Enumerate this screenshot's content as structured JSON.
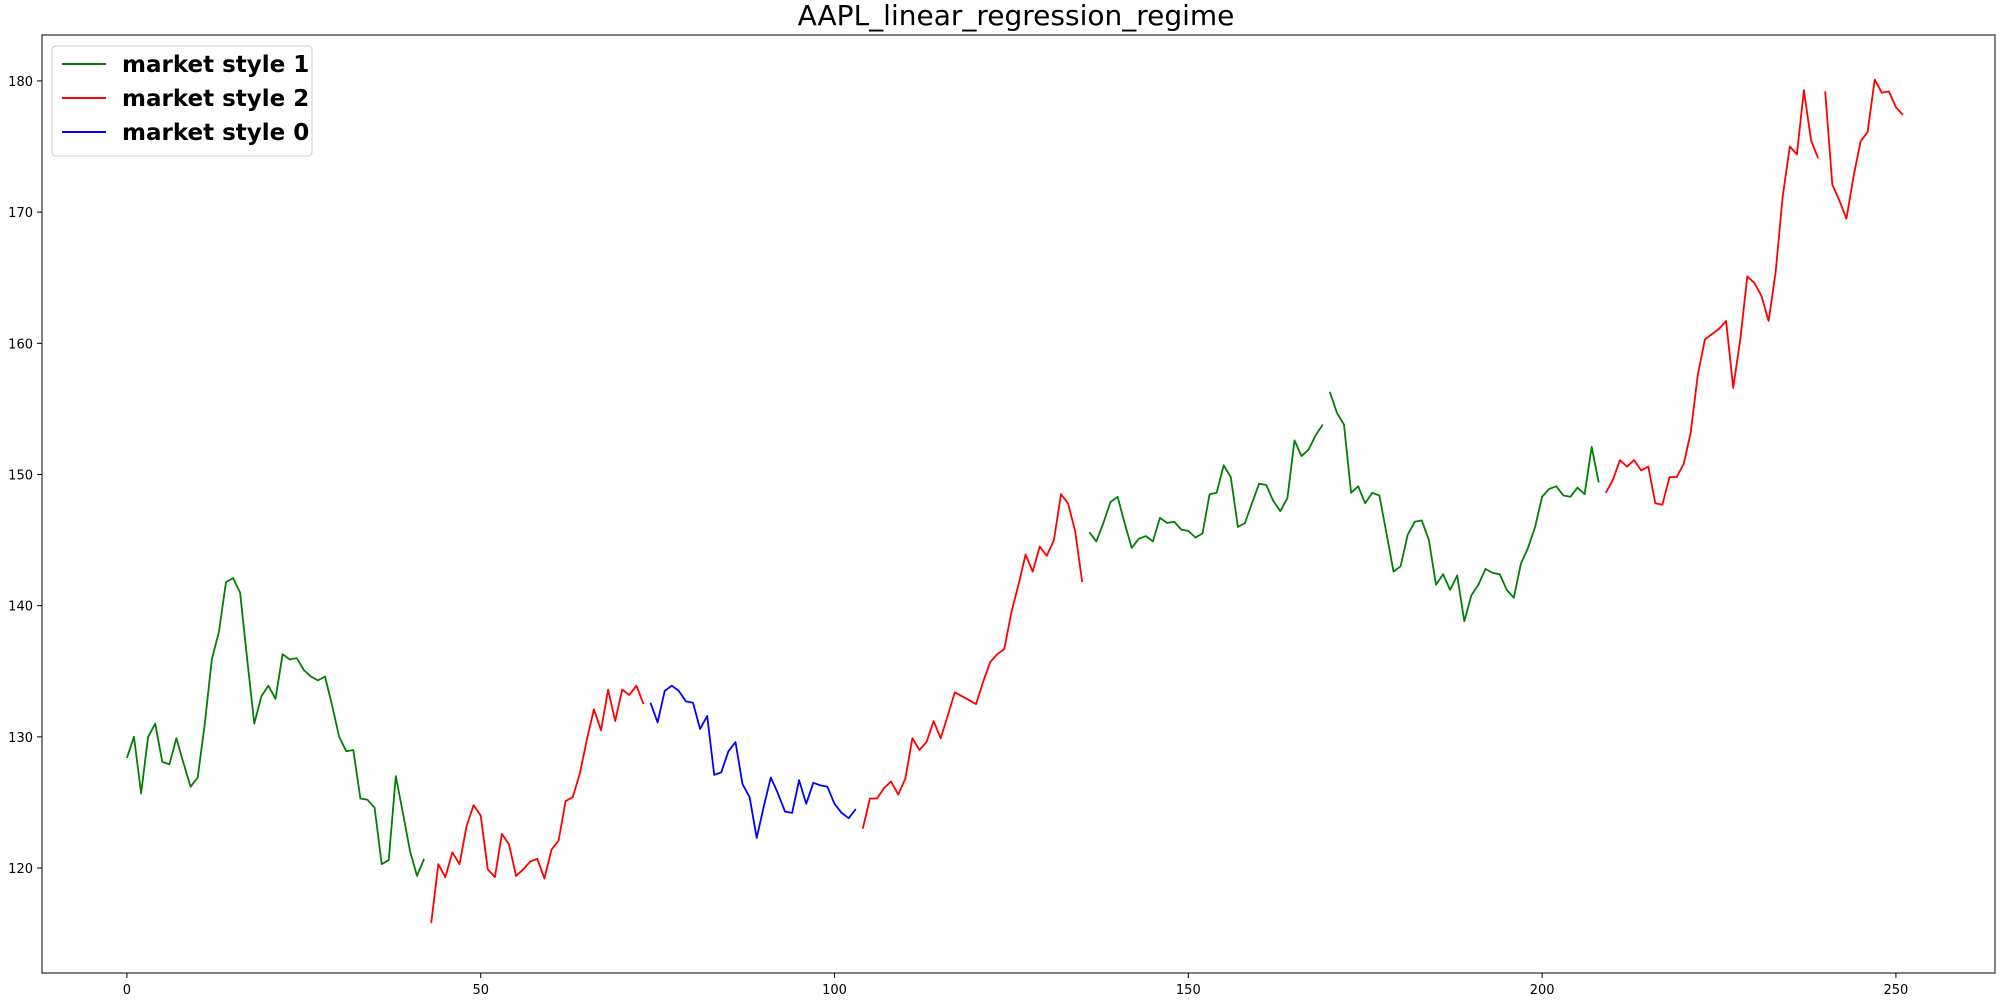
{
  "chart_data": {
    "type": "line",
    "title": "AAPL_linear_regression_regime",
    "xlabel": "",
    "ylabel": "",
    "xlim": [
      -12,
      264
    ],
    "ylim": [
      112,
      183.5
    ],
    "xticks": [
      0,
      50,
      100,
      150,
      200,
      250
    ],
    "yticks": [
      120,
      130,
      140,
      150,
      160,
      170,
      180
    ],
    "grid": false,
    "legend_position": "upper-left",
    "legend": [
      {
        "label": "market style 1",
        "color": "#008000"
      },
      {
        "label": "market style 2",
        "color": "#ff0000"
      },
      {
        "label": "market style 0",
        "color": "#0000ff"
      }
    ],
    "segments": [
      {
        "style": "market style 1",
        "color": "#008000",
        "x_start": 0,
        "values": [
          128.4,
          130.0,
          125.7,
          130.0,
          131.0,
          128.1,
          127.9,
          129.9,
          128.0,
          126.2,
          126.9,
          131.0,
          135.9,
          138.0,
          141.8,
          142.1,
          141.0,
          135.9,
          131.0,
          133.1,
          133.9,
          132.9,
          136.3,
          135.9,
          136.0,
          135.1,
          134.6,
          134.3,
          134.6,
          132.4,
          130.0,
          128.9,
          129.0,
          125.3,
          125.2,
          124.6,
          120.3,
          120.6,
          127.0,
          124.2,
          121.3,
          119.4,
          120.7
        ]
      },
      {
        "style": "market style 2",
        "color": "#ff0000",
        "x_start": 43,
        "values": [
          115.8,
          120.3,
          119.3,
          121.2,
          120.3,
          123.2,
          124.8,
          124.0,
          119.9,
          119.3,
          122.6,
          121.8,
          119.4,
          119.9,
          120.5,
          120.7,
          119.2,
          121.4,
          122.1,
          125.1,
          125.4,
          127.2,
          129.8,
          132.1,
          130.5,
          133.6,
          131.2,
          133.6,
          133.2,
          133.9,
          132.5
        ]
      },
      {
        "style": "market style 0",
        "color": "#0000ff",
        "x_start": 74,
        "values": [
          132.6,
          131.1,
          133.5,
          133.9,
          133.5,
          132.7,
          132.6,
          130.6,
          131.6,
          127.1,
          127.3,
          128.9,
          129.6,
          126.4,
          125.4,
          122.3,
          124.7,
          126.9,
          125.7,
          124.3,
          124.2,
          126.7,
          124.9,
          126.5,
          126.3,
          126.2,
          124.9,
          124.2,
          123.8,
          124.5
        ]
      },
      {
        "style": "market style 2",
        "color": "#ff0000",
        "x_start": 104,
        "values": [
          123.0,
          125.3,
          125.3,
          126.1,
          126.6,
          125.6,
          126.8,
          129.9,
          129.0,
          129.6,
          131.2,
          129.9,
          131.6,
          133.4,
          133.1,
          132.8,
          132.5,
          134.2,
          135.7,
          136.3,
          136.7,
          139.5,
          141.6,
          143.9,
          142.6,
          144.5,
          143.8,
          145.0,
          148.5,
          147.8,
          145.7,
          141.8
        ]
      },
      {
        "style": "market style 1",
        "color": "#008000",
        "x_start": 136,
        "values": [
          145.6,
          144.9,
          146.3,
          147.9,
          148.3,
          146.3,
          144.4,
          145.1,
          145.3,
          144.9,
          146.7,
          146.3,
          146.4,
          145.8,
          145.7,
          145.2,
          145.5,
          148.5,
          148.6,
          150.7,
          149.8,
          146.0,
          146.3,
          147.8,
          149.3,
          149.2,
          148.0,
          147.2,
          148.2,
          152.6,
          151.4,
          151.9,
          153.0,
          153.8
        ]
      },
      {
        "style": "market style 1",
        "color": "#008000",
        "x_start": 170,
        "values": [
          156.3,
          154.7,
          153.8,
          148.6,
          149.1,
          147.8,
          148.6,
          148.4,
          145.5,
          142.6,
          143.0,
          145.4,
          146.4,
          146.5,
          145.0,
          141.6,
          142.4,
          141.2,
          142.3,
          138.8,
          140.8,
          141.6,
          142.8,
          142.5,
          142.4,
          141.2,
          140.6,
          143.2,
          144.4,
          146.0,
          148.3,
          148.9,
          149.1,
          148.4,
          148.3,
          149.0,
          148.5,
          152.1,
          149.4
        ]
      },
      {
        "style": "market style 2",
        "color": "#ff0000",
        "x_start": 209,
        "values": [
          148.6,
          149.6,
          151.1,
          150.6,
          151.1,
          150.3,
          150.6,
          147.8,
          147.7,
          149.8,
          149.8,
          150.8,
          153.2,
          157.6,
          160.3,
          160.7,
          161.1,
          161.7,
          156.6,
          160.3,
          165.1,
          164.6,
          163.6,
          161.7,
          165.4,
          171.2,
          175.0,
          174.4,
          179.3,
          175.5,
          174.1
        ]
      },
      {
        "style": "market style 2",
        "color": "#ff0000",
        "x_start": 240,
        "values": [
          179.2,
          172.1,
          170.9,
          169.5,
          172.7,
          175.4,
          176.1,
          180.1,
          179.1,
          179.2,
          178.0,
          177.4
        ]
      }
    ]
  }
}
